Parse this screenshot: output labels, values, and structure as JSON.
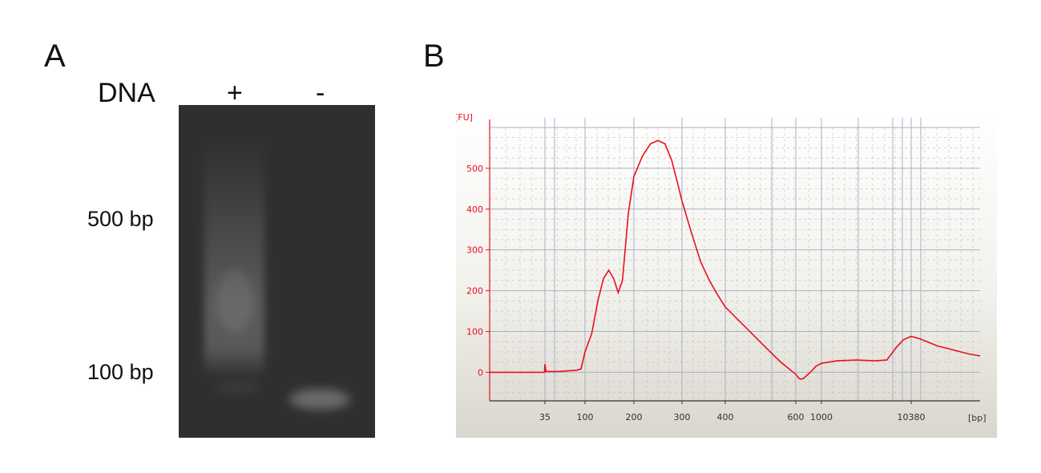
{
  "panel_a": {
    "letter": "A",
    "row_label": "DNA",
    "lanes": [
      "+",
      "-"
    ],
    "markers": [
      "500 bp",
      "100 bp"
    ]
  },
  "panel_b": {
    "letter": "B"
  },
  "chart_data": {
    "type": "line",
    "title": "",
    "xlabel": "",
    "ylabel": "",
    "y_unit": "[FU]",
    "x_unit": "[bp]",
    "ylim": [
      -70,
      600
    ],
    "y_ticks": [
      0,
      100,
      200,
      300,
      400,
      500
    ],
    "x_tick_labels": [
      "35",
      "100",
      "200",
      "300",
      "400",
      "600",
      "1000",
      "10380"
    ],
    "x_tick_positions": [
      35,
      100,
      200,
      300,
      400,
      600,
      1000,
      10380
    ],
    "grid": true,
    "legend": "none",
    "line_color": "#e8101c",
    "series": [
      {
        "points": [
          [
            1,
            0
          ],
          [
            20,
            0
          ],
          [
            34,
            0
          ],
          [
            35,
            20
          ],
          [
            36,
            2
          ],
          [
            50,
            2
          ],
          [
            80,
            5
          ],
          [
            90,
            8
          ],
          [
            100,
            50
          ],
          [
            110,
            95
          ],
          [
            120,
            175
          ],
          [
            130,
            230
          ],
          [
            140,
            250
          ],
          [
            150,
            230
          ],
          [
            160,
            195
          ],
          [
            170,
            225
          ],
          [
            185,
            390
          ],
          [
            200,
            480
          ],
          [
            215,
            530
          ],
          [
            230,
            560
          ],
          [
            245,
            568
          ],
          [
            260,
            560
          ],
          [
            275,
            520
          ],
          [
            290,
            460
          ],
          [
            300,
            420
          ],
          [
            320,
            340
          ],
          [
            340,
            270
          ],
          [
            360,
            225
          ],
          [
            380,
            190
          ],
          [
            400,
            160
          ],
          [
            450,
            110
          ],
          [
            500,
            65
          ],
          [
            550,
            25
          ],
          [
            600,
            -5
          ],
          [
            640,
            -15
          ],
          [
            660,
            -17
          ],
          [
            700,
            -15
          ],
          [
            800,
            0
          ],
          [
            900,
            15
          ],
          [
            1000,
            22
          ],
          [
            1500,
            28
          ],
          [
            2500,
            30
          ],
          [
            4000,
            28
          ],
          [
            5500,
            30
          ],
          [
            7000,
            60
          ],
          [
            8500,
            80
          ],
          [
            10380,
            88
          ],
          [
            13000,
            82
          ],
          [
            20000,
            65
          ],
          [
            30000,
            55
          ],
          [
            45000,
            45
          ],
          [
            60000,
            40
          ]
        ]
      }
    ]
  }
}
